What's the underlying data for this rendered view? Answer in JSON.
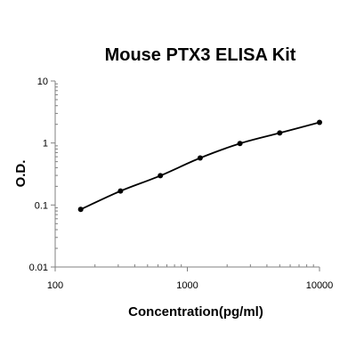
{
  "chart_data": {
    "type": "line",
    "title": "Mouse PTX3 ELISA Kit",
    "xlabel": "Concentration(pg/ml)",
    "ylabel": "O.D.",
    "x_scale": "log",
    "y_scale": "log",
    "xlim": [
      100,
      10000
    ],
    "ylim": [
      0.01,
      10
    ],
    "x_ticks": [
      "100",
      "1000",
      "10000"
    ],
    "y_ticks": [
      "0.01",
      "0.1",
      "1",
      "10"
    ],
    "grid": false,
    "legend": "none",
    "series": [
      {
        "x": [
          156,
          312,
          625,
          1250,
          2500,
          5000,
          10000
        ],
        "y": [
          0.085,
          0.168,
          0.297,
          0.573,
          0.98,
          1.45,
          2.15
        ]
      }
    ],
    "colors": {
      "line": "#000000",
      "points": "#000000",
      "axis": "#808080"
    }
  }
}
